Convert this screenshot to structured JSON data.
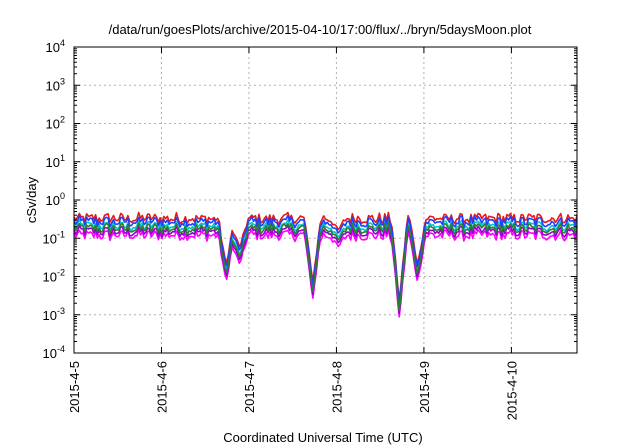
{
  "chart_data": {
    "type": "line",
    "title": "/data/run/goesPlots/archive/2015-04-10/17:00/flux/../bryn/5daysMoon.plot",
    "xlabel": "Coordinated Universal Time (UTC)",
    "ylabel": "cSv/day",
    "y_scale": "log",
    "ylim": [
      0.0001,
      10000
    ],
    "y_ticks": [
      {
        "value": 0.0001,
        "base": "10",
        "exp": "-4"
      },
      {
        "value": 0.001,
        "base": "10",
        "exp": "-3"
      },
      {
        "value": 0.01,
        "base": "10",
        "exp": "-2"
      },
      {
        "value": 0.1,
        "base": "10",
        "exp": "-1"
      },
      {
        "value": 1,
        "base": "10",
        "exp": "0"
      },
      {
        "value": 10,
        "base": "10",
        "exp": "1"
      },
      {
        "value": 100,
        "base": "10",
        "exp": "2"
      },
      {
        "value": 1000,
        "base": "10",
        "exp": "3"
      },
      {
        "value": 10000,
        "base": "10",
        "exp": "4"
      }
    ],
    "xlim": [
      "2015-04-05 00:00",
      "2015-04-10 18:00"
    ],
    "x_ticks": [
      "2015-4-5",
      "2015-4-6",
      "2015-4-7",
      "2015-4-8",
      "2015-4-9",
      "2015-4-10"
    ],
    "grid": true,
    "series": [
      {
        "color": "#e31a1c",
        "base": 0.33
      },
      {
        "color": "#ff00ff",
        "base": 0.12
      },
      {
        "color": "#9400d3",
        "base": 0.15
      },
      {
        "color": "#00c8c8",
        "base": 0.21
      },
      {
        "color": "#2040ff",
        "base": 0.27
      },
      {
        "color": "#2e7d32",
        "base": 0.18
      }
    ],
    "dips": [
      {
        "time": "2015-04-06 17:45",
        "value": 0.007
      },
      {
        "time": "2015-04-06 19:45",
        "value": 0.06
      },
      {
        "time": "2015-04-06 21:30",
        "value": 0.02
      },
      {
        "time": "2015-04-07 17:30",
        "value": 0.0025
      },
      {
        "time": "2015-04-08 00:30",
        "value": 0.06
      },
      {
        "time": "2015-04-08 17:15",
        "value": 0.0008
      },
      {
        "time": "2015-04-08 22:15",
        "value": 0.007
      }
    ]
  }
}
